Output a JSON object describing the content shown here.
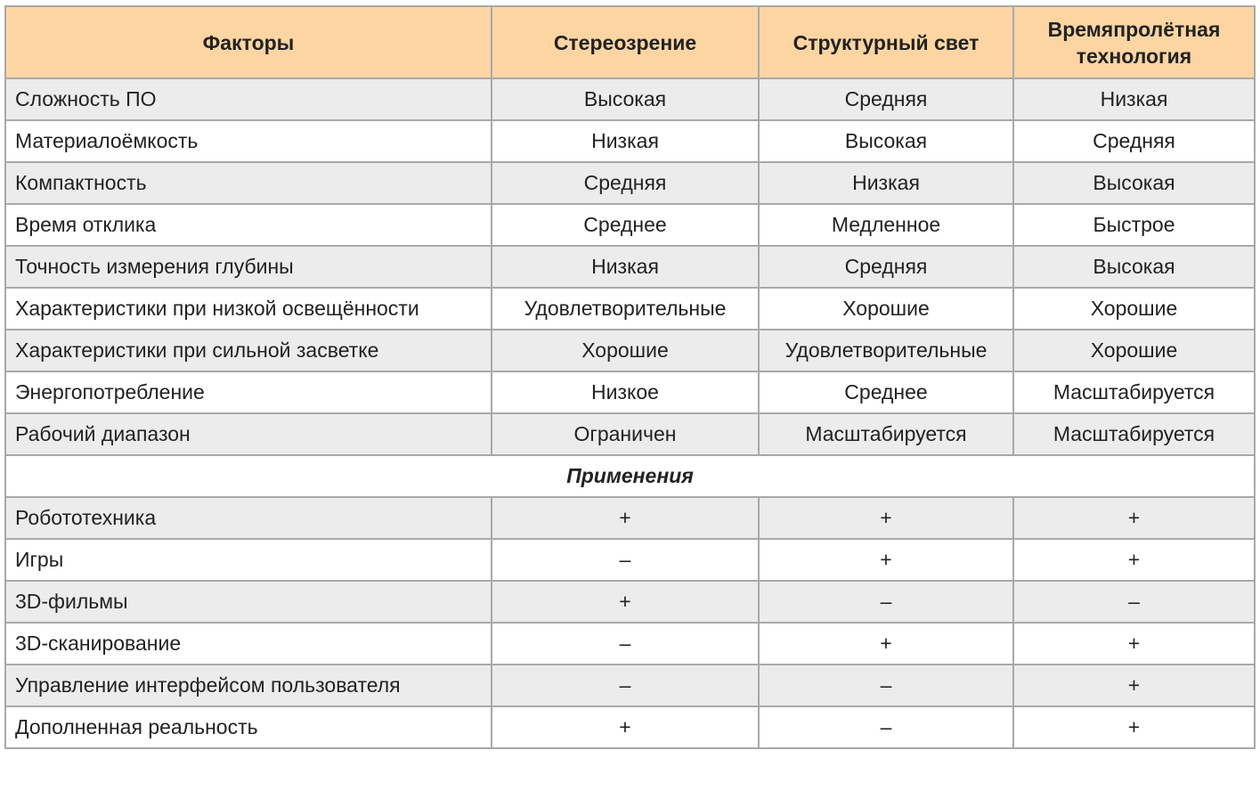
{
  "table": {
    "header": [
      "Факторы",
      "Стереозрение",
      "Структурный свет",
      "Времяпролётная технология"
    ],
    "rows": [
      [
        "Сложность ПО",
        "Высокая",
        "Средняя",
        "Низкая"
      ],
      [
        "Материалоёмкость",
        "Низкая",
        "Высокая",
        "Средняя"
      ],
      [
        "Компактность",
        "Средняя",
        "Низкая",
        "Высокая"
      ],
      [
        "Время отклика",
        "Среднее",
        "Медленное",
        "Быстрое"
      ],
      [
        "Точность измерения глубины",
        "Низкая",
        "Средняя",
        "Высокая"
      ],
      [
        "Характеристики при низкой освещённости",
        "Удовлетворительные",
        "Хорошие",
        "Хорошие"
      ],
      [
        "Характеристики при сильной засветке",
        "Хорошие",
        "Удовлетворительные",
        "Хорошие"
      ],
      [
        "Энергопотребление",
        "Низкое",
        "Среднее",
        "Масштабируется"
      ],
      [
        "Рабочий диапазон",
        "Ограничен",
        "Масштабируется",
        "Масштабируется"
      ]
    ],
    "section": "Применения",
    "application_rows": [
      [
        "Робототехника",
        "+",
        "+",
        "+"
      ],
      [
        "Игры",
        "–",
        "+",
        "+"
      ],
      [
        "3D-фильмы",
        "+",
        "–",
        "–"
      ],
      [
        "3D-сканирование",
        "–",
        "+",
        "+"
      ],
      [
        "Управление интерфейсом пользователя",
        "–",
        "–",
        "+"
      ],
      [
        "Дополненная реальность",
        "+",
        "–",
        "+"
      ]
    ]
  }
}
